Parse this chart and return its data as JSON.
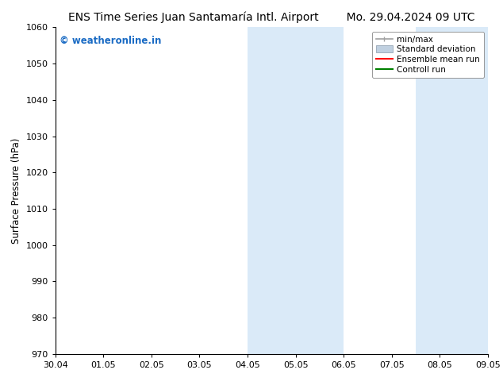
{
  "title_left": "ENS Time Series Juan Santamaría Intl. Airport",
  "title_right": "Mo. 29.04.2024 09 UTC",
  "ylabel": "Surface Pressure (hPa)",
  "ylim": [
    970,
    1060
  ],
  "yticks": [
    970,
    980,
    990,
    1000,
    1010,
    1020,
    1030,
    1040,
    1050,
    1060
  ],
  "xtick_labels": [
    "30.04",
    "01.05",
    "02.05",
    "03.05",
    "04.05",
    "05.05",
    "06.05",
    "07.05",
    "08.05",
    "09.05"
  ],
  "xtick_positions": [
    0,
    1,
    2,
    3,
    4,
    5,
    6,
    7,
    8,
    9
  ],
  "shaded_bands": [
    {
      "x_start": 4.0,
      "x_end": 6.0,
      "color": "#daeaf8",
      "alpha": 1.0
    },
    {
      "x_start": 7.5,
      "x_end": 9.0,
      "color": "#daeaf8",
      "alpha": 1.0
    }
  ],
  "watermark_text": "© weatheronline.in",
  "watermark_color": "#1a6bc4",
  "background_color": "#ffffff",
  "plot_bg_color": "#ffffff",
  "font_size_title": 10,
  "font_size_axis": 8.5,
  "font_size_ticks": 8,
  "font_size_legend": 7.5,
  "font_size_watermark": 8.5,
  "minmax_color": "#a0a0a0",
  "std_color": "#c0d0e0",
  "ensemble_color": "red",
  "control_color": "green"
}
